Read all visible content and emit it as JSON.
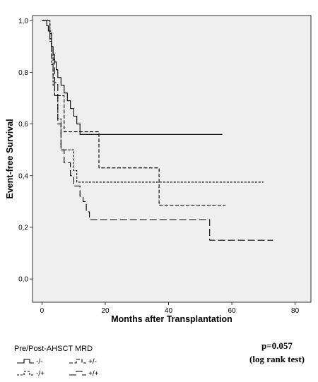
{
  "chart_data": {
    "type": "line",
    "step": true,
    "title": "",
    "xlabel": "Months after Transplantation",
    "ylabel": "Event-free Survival",
    "xlim": [
      -3,
      85
    ],
    "ylim": [
      -0.09,
      1.02
    ],
    "xticks": [
      0,
      20,
      40,
      60,
      80
    ],
    "xtick_labels": [
      "0",
      "20",
      "40",
      "60",
      "80"
    ],
    "yticks": [
      0.0,
      0.2,
      0.4,
      0.6,
      0.8,
      1.0
    ],
    "ytick_labels": [
      "0,0",
      "0,2",
      "0,4",
      "0,6",
      "0,8",
      "1,0"
    ],
    "grid": false,
    "plot_background": "#efefef",
    "legend_placement": "bottom-left",
    "series": [
      {
        "name": "-/-",
        "style": "solid",
        "color": "#000000",
        "x": [
          0,
          1,
          1.5,
          2,
          2.5,
          3,
          3.5,
          4,
          4.5,
          5,
          6,
          7,
          8,
          9,
          10,
          11,
          12,
          17,
          57
        ],
        "y": [
          1.0,
          1.0,
          0.98,
          0.96,
          0.93,
          0.9,
          0.87,
          0.84,
          0.81,
          0.78,
          0.75,
          0.72,
          0.69,
          0.66,
          0.63,
          0.6,
          0.56,
          0.56,
          0.56
        ]
      },
      {
        "name": "-/+",
        "style": "dense-dash",
        "color": "#000000",
        "x": [
          0,
          2,
          2.5,
          3,
          3.5,
          4,
          5,
          6,
          8,
          10,
          11,
          70
        ],
        "y": [
          1.0,
          1.0,
          0.92,
          0.83,
          0.75,
          0.71,
          0.62,
          0.5,
          0.5,
          0.42,
          0.375,
          0.375
        ]
      },
      {
        "name": "+/-",
        "style": "dash",
        "color": "#000000",
        "x": [
          0,
          2,
          2.5,
          3,
          3.5,
          4,
          5,
          7,
          17,
          18,
          36,
          37,
          58
        ],
        "y": [
          1.0,
          1.0,
          0.96,
          0.86,
          0.78,
          0.71,
          0.71,
          0.57,
          0.57,
          0.43,
          0.43,
          0.285,
          0.285
        ]
      },
      {
        "name": "+/+",
        "style": "long-dash",
        "color": "#000000",
        "x": [
          0,
          2,
          2.5,
          3,
          3.5,
          4,
          5,
          6,
          7,
          9,
          10,
          12,
          13,
          14,
          15,
          16,
          52,
          53,
          73
        ],
        "y": [
          1.0,
          1.0,
          0.95,
          0.9,
          0.85,
          0.76,
          0.6,
          0.5,
          0.45,
          0.4,
          0.36,
          0.32,
          0.3,
          0.26,
          0.23,
          0.23,
          0.23,
          0.15,
          0.15
        ]
      }
    ]
  },
  "legend": {
    "title": "Pre/Post-AHSCT MRD"
  },
  "annotation": {
    "pvalue": "p=0.057",
    "test": "(log rank test)"
  }
}
